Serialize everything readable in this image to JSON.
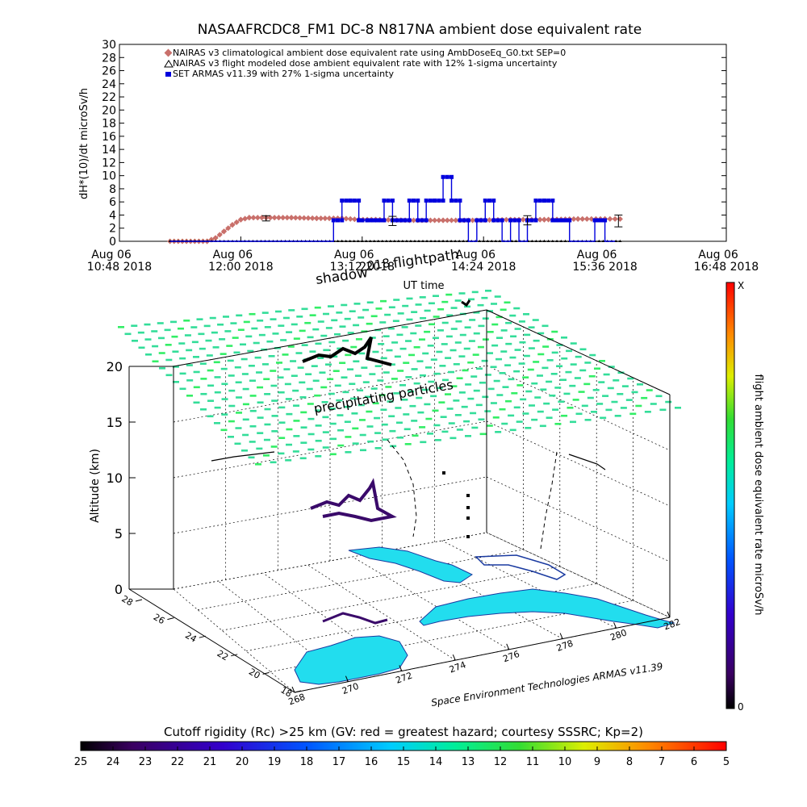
{
  "title": "NASAAFRCDC8_FM1 DC-8    N817NA ambient dose equivalent rate",
  "colors": {
    "nairas_clim": "#c9706b",
    "nairas_flight": "#000000",
    "armas": "#0000dd",
    "precip": "#33dd99",
    "land": "#22ddee",
    "land_edge": "#1a3aa0"
  },
  "chart_data": [
    {
      "type": "line",
      "xlabel": "UT time",
      "ylabel": "dH*(10)/dt microSv/h",
      "ylim": [
        0,
        30
      ],
      "y_ticks": [
        "0",
        "2",
        "4",
        "6",
        "8",
        "10",
        "12",
        "14",
        "16",
        "18",
        "20",
        "22",
        "24",
        "26",
        "28",
        "30"
      ],
      "x_ticks": [
        {
          "l1": "Aug 06",
          "l2": "10:48 2018"
        },
        {
          "l1": "Aug 06",
          "l2": "12:00 2018"
        },
        {
          "l1": "Aug 06",
          "l2": "13:12 2018"
        },
        {
          "l1": "Aug 06",
          "l2": "14:24 2018"
        },
        {
          "l1": "Aug 06",
          "l2": "15:36 2018"
        },
        {
          "l1": "Aug 06",
          "l2": "16:48 2018"
        }
      ],
      "legend_position": "top-left",
      "series": [
        {
          "name": "NAIRAS v3 climatological ambient dose equivalent rate using AmbDoseEq_G0.txt SEP=0",
          "marker": "diamond",
          "x": [
            "11:18",
            "11:40",
            "11:45",
            "11:50",
            "11:55",
            "12:00",
            "12:05",
            "12:15",
            "12:30",
            "12:45",
            "13:00",
            "13:10",
            "13:20",
            "13:40",
            "14:00",
            "14:10",
            "14:20",
            "14:40",
            "15:00",
            "15:20",
            "15:36",
            "15:45"
          ],
          "values": [
            0,
            0,
            0.5,
            1.5,
            2.5,
            3.3,
            3.6,
            3.6,
            3.6,
            3.5,
            3.5,
            3.3,
            3.3,
            3.2,
            3.2,
            3.2,
            3.2,
            3.3,
            3.3,
            3.4,
            3.4,
            3.4
          ]
        },
        {
          "name": "NAIRAS v3 flight modeled dose ambient equivalent rate with 12% 1-sigma uncertainty",
          "marker": "triangle",
          "x": [
            "11:18",
            "12:00",
            "13:00",
            "14:00",
            "15:00",
            "15:45"
          ],
          "values": [
            0,
            0,
            0,
            0,
            0,
            0
          ]
        },
        {
          "name": "SET ARMAS v11.39 with 27% 1-sigma uncertainty",
          "marker": "square",
          "x": [
            "11:18",
            "12:40",
            "12:55",
            "13:00",
            "13:05",
            "13:10",
            "13:12",
            "13:15",
            "13:25",
            "13:30",
            "13:35",
            "13:40",
            "13:45",
            "13:50",
            "13:55",
            "14:00",
            "14:05",
            "14:10",
            "14:15",
            "14:20",
            "14:25",
            "14:30",
            "14:35",
            "14:40",
            "14:45",
            "14:50",
            "14:55",
            "15:00",
            "15:05",
            "15:15",
            "15:30",
            "15:36",
            "15:42"
          ],
          "values": [
            0,
            0,
            3.2,
            6.2,
            6.2,
            3.2,
            3.2,
            3.2,
            6.2,
            3.2,
            3.2,
            6.2,
            3.2,
            6.2,
            6.2,
            9.8,
            6.2,
            3.2,
            0,
            3.2,
            6.2,
            3.2,
            0,
            3.2,
            0,
            3.2,
            6.2,
            6.2,
            3.2,
            0,
            3.2,
            0,
            0
          ]
        }
      ],
      "error_bars": [
        {
          "x": "12:15",
          "value": 3.5,
          "err": 0.4
        },
        {
          "x": "13:30",
          "value": 3.1,
          "err": 0.7
        },
        {
          "x": "14:50",
          "value": 3.2,
          "err": 0.7
        },
        {
          "x": "15:44",
          "value": 3.1,
          "err": 0.9
        }
      ]
    },
    {
      "type": "scatter",
      "zlabel": "Altitude (km)",
      "z_ticks": [
        "0",
        "5",
        "10",
        "15",
        "20"
      ],
      "y_ticks": [
        "18",
        "20",
        "22",
        "24",
        "26",
        "28"
      ],
      "x_ticks": [
        "268",
        "270",
        "272",
        "274",
        "276",
        "278",
        "280",
        "282"
      ],
      "annotations": {
        "shadow": "shadow",
        "year": "2018",
        "flightpath": "flightpath",
        "precip": "precipitating particles",
        "credit": "Space Environment Technologies ARMAS v11.39"
      },
      "colorbar_right": {
        "label": "flight ambient dose equivalent rate microSv/h",
        "max_label": "X",
        "min_label": "0"
      },
      "colorbar_bottom": {
        "label": "Cutoff rigidity (Rc) >25 km (GV: red = greatest hazard; courtesy SSSRC; Kp=2)",
        "ticks": [
          "25",
          "24",
          "23",
          "22",
          "21",
          "20",
          "19",
          "18",
          "17",
          "16",
          "15",
          "14",
          "13",
          "12",
          "11",
          "10",
          "9",
          "8",
          "7",
          "6",
          "5"
        ]
      }
    }
  ]
}
